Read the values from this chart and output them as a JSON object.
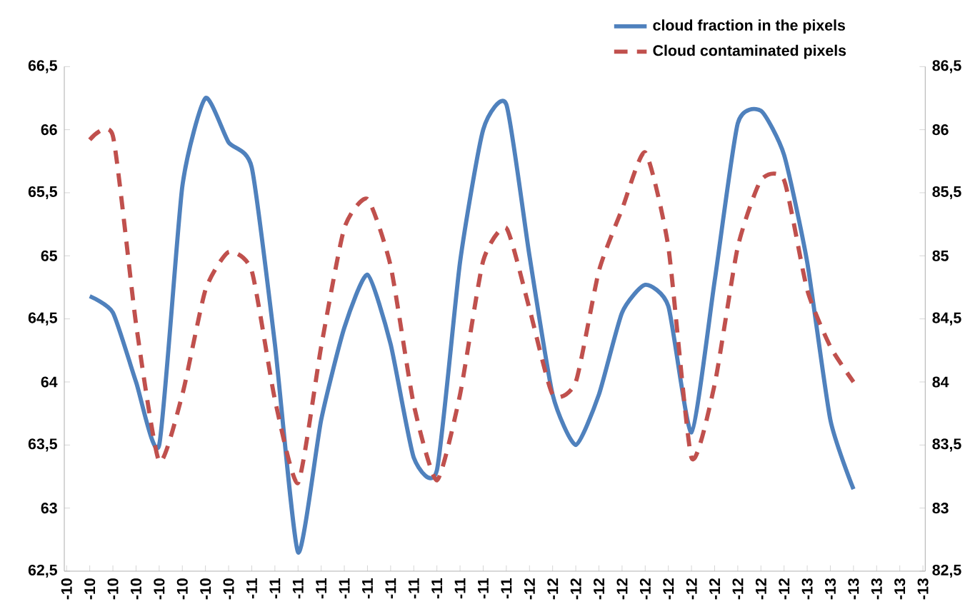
{
  "chart_data": {
    "type": "line",
    "categories": [
      "-10",
      "-10",
      "-10",
      "-10",
      "-10",
      "-10",
      "-10",
      "-10",
      "-11",
      "-11",
      "-11",
      "-11",
      "-11",
      "-11",
      "-11",
      "-11",
      "-11",
      "-11",
      "-11",
      "-11",
      "-12",
      "-12",
      "-12",
      "-12",
      "-12",
      "-12",
      "-12",
      "-12",
      "-12",
      "-12",
      "-12",
      "-12",
      "-13",
      "-13",
      "-13",
      "-13",
      "-13",
      "-13"
    ],
    "series": [
      {
        "name": "cloud fraction in the pixels",
        "color": "#4f81bd",
        "line_style": "solid",
        "axis": "y",
        "values": [
          null,
          64.68,
          64.55,
          64.0,
          63.5,
          65.55,
          66.25,
          65.9,
          65.7,
          64.3,
          62.65,
          63.7,
          64.43,
          64.85,
          64.3,
          63.4,
          63.3,
          64.95,
          66.0,
          66.2,
          65.0,
          63.9,
          63.5,
          63.9,
          64.55,
          64.77,
          64.6,
          63.6,
          64.8,
          66.05,
          66.15,
          65.8,
          64.95,
          63.7,
          63.15,
          null,
          null,
          null
        ]
      },
      {
        "name": "Cloud contaminated pixels",
        "color": "#c0504d",
        "line_style": "dashed",
        "axis": "y2",
        "values": [
          null,
          85.92,
          85.95,
          84.46,
          83.37,
          83.9,
          84.73,
          85.03,
          84.88,
          83.86,
          83.2,
          84.28,
          85.22,
          85.45,
          84.92,
          83.82,
          83.22,
          83.9,
          84.96,
          85.22,
          84.58,
          83.9,
          84.0,
          84.88,
          85.37,
          85.82,
          85.07,
          83.4,
          83.98,
          85.07,
          85.6,
          85.6,
          84.73,
          84.28,
          84.0,
          null,
          null,
          null
        ]
      }
    ],
    "ylim": [
      62.5,
      66.5
    ],
    "yticks": [
      {
        "value": 62.5,
        "label": "62,5"
      },
      63,
      {
        "value": 63.5,
        "label": "63,5"
      },
      64,
      {
        "value": 64.5,
        "label": "64,5"
      },
      65,
      {
        "value": 65.5,
        "label": "65,5"
      },
      66,
      {
        "value": 66.5,
        "label": "66,5"
      }
    ],
    "y2lim": [
      82.5,
      86.5
    ],
    "y2ticks": [
      {
        "value": 82.5,
        "label": "82,5"
      },
      83,
      {
        "value": 83.5,
        "label": "83,5"
      },
      84,
      {
        "value": 84.5,
        "label": "84,5"
      },
      85,
      {
        "value": 85.5,
        "label": "85,5"
      },
      86,
      {
        "value": 86.5,
        "label": "86,5"
      }
    ],
    "legend": "top right",
    "marker": "none",
    "grid": false
  }
}
